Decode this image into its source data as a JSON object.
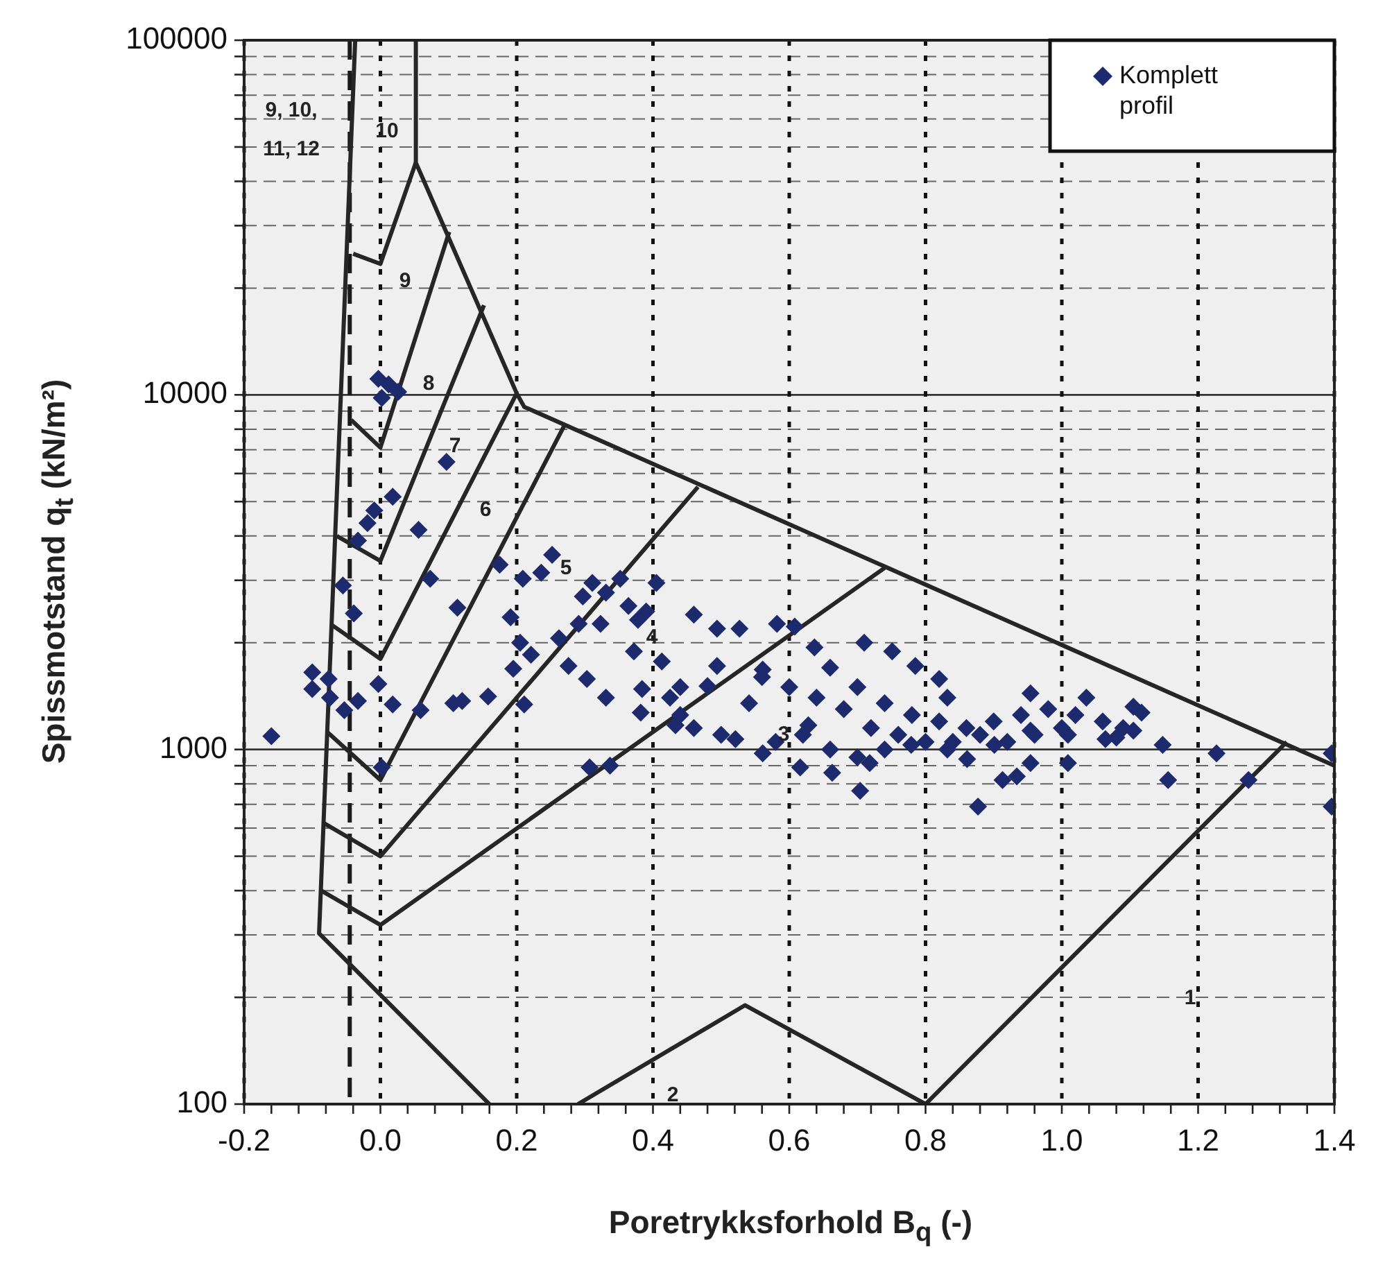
{
  "chart_data": {
    "type": "scatter",
    "xlabel": "Poretrykksforhold B$_{q}$ (-)",
    "ylabel": "Spissmotstand q$_{t}$ (kN/m²)",
    "log": "y",
    "grid": true,
    "legend": "top right",
    "xlim": [
      -0.2,
      1.4
    ],
    "xticks": [
      {
        "value": -0.2,
        "label": "-0.2"
      },
      {
        "value": -0.16,
        "label": null
      },
      {
        "value": -0.12,
        "label": null
      },
      {
        "value": -0.08,
        "label": null
      },
      {
        "value": -0.04,
        "label": null
      },
      {
        "value": 0,
        "label": "0.0"
      },
      {
        "value": 0.04,
        "label": null
      },
      {
        "value": 0.08,
        "label": null
      },
      {
        "value": 0.12,
        "label": null
      },
      {
        "value": 0.16,
        "label": null
      },
      {
        "value": 0.2,
        "label": "0.2"
      },
      {
        "value": 0.24,
        "label": null
      },
      {
        "value": 0.28,
        "label": null
      },
      {
        "value": 0.32,
        "label": null
      },
      {
        "value": 0.36,
        "label": null
      },
      {
        "value": 0.4,
        "label": "0.4"
      },
      {
        "value": 0.44,
        "label": null
      },
      {
        "value": 0.48,
        "label": null
      },
      {
        "value": 0.52,
        "label": null
      },
      {
        "value": 0.56,
        "label": null
      },
      {
        "value": 0.6,
        "label": "0.6"
      },
      {
        "value": 0.64,
        "label": null
      },
      {
        "value": 0.68,
        "label": null
      },
      {
        "value": 0.72,
        "label": null
      },
      {
        "value": 0.76,
        "label": null
      },
      {
        "value": 0.8,
        "label": "0.8"
      },
      {
        "value": 0.84,
        "label": null
      },
      {
        "value": 0.88,
        "label": null
      },
      {
        "value": 0.92,
        "label": null
      },
      {
        "value": 0.96,
        "label": null
      },
      {
        "value": 1,
        "label": "1.0"
      },
      {
        "value": 1.04,
        "label": null
      },
      {
        "value": 1.08,
        "label": null
      },
      {
        "value": 1.12,
        "label": null
      },
      {
        "value": 1.16,
        "label": null
      },
      {
        "value": 1.2,
        "label": "1.2"
      },
      {
        "value": 1.24,
        "label": null
      },
      {
        "value": 1.28,
        "label": null
      },
      {
        "value": 1.32,
        "label": null
      },
      {
        "value": 1.36,
        "label": null
      },
      {
        "value": 1.4,
        "label": "1.4"
      }
    ],
    "ylim": [
      100,
      100000
    ],
    "yticks": [
      100,
      {
        "value": 200,
        "label": null
      },
      {
        "value": 300,
        "label": null
      },
      {
        "value": 400,
        "label": null
      },
      {
        "value": 500,
        "label": null
      },
      {
        "value": 600,
        "label": null
      },
      {
        "value": 700,
        "label": null
      },
      {
        "value": 800,
        "label": null
      },
      {
        "value": 900,
        "label": null
      },
      1000,
      {
        "value": 2000,
        "label": null
      },
      {
        "value": 3000,
        "label": null
      },
      {
        "value": 4000,
        "label": null
      },
      {
        "value": 5000,
        "label": null
      },
      {
        "value": 6000,
        "label": null
      },
      {
        "value": 7000,
        "label": null
      },
      {
        "value": 8000,
        "label": null
      },
      {
        "value": 9000,
        "label": null
      },
      10000,
      {
        "value": 20000,
        "label": null
      },
      {
        "value": 30000,
        "label": null
      },
      {
        "value": 40000,
        "label": null
      },
      {
        "value": 50000,
        "label": null
      },
      {
        "value": 60000,
        "label": null
      },
      {
        "value": 70000,
        "label": null
      },
      {
        "value": 80000,
        "label": null
      },
      {
        "value": 90000,
        "label": null
      },
      100000
    ],
    "ref_lines": [
      {
        "axis": "x",
        "value": -0.045,
        "line_style": "dashed",
        "color": "#1a1a1a"
      }
    ],
    "annotations": [
      "9, 10, 11, 12",
      "10",
      "9",
      "8",
      "7",
      "6",
      "5",
      "4",
      "3",
      "2",
      "1"
    ],
    "series": [
      {
        "name": "Komplett profil",
        "type": "scatter",
        "marker": "diamond",
        "color": "#1e2a6e",
        "x": [
          -0.16,
          -0.1,
          -0.076,
          -0.1,
          -0.074,
          -0.053,
          -0.033,
          -0.003,
          0.018,
          0.059,
          0.107,
          0.12,
          0.158,
          0.211,
          0.002,
          0.307,
          0.337,
          -0.055,
          -0.039,
          -0.033,
          0.073,
          0.113,
          0.191,
          0.175,
          0.056,
          0.205,
          0.195,
          0.221,
          0.252,
          0.209,
          0.236,
          0.262,
          0.276,
          0.303,
          0.331,
          0.297,
          0.331,
          0.364,
          0.378,
          0.323,
          0.291,
          0.372,
          0.384,
          0.382,
          0.405,
          0.425,
          0.433,
          0.413,
          0.352,
          0.311,
          0.39,
          0.44,
          0.46,
          0.494,
          0.527,
          0.494,
          0.48,
          0.541,
          0.582,
          0.608,
          0.561,
          0.637,
          0.71,
          0.751,
          0.785,
          0.82,
          0.832,
          0.954,
          1.036,
          1.105,
          1.117,
          0.628,
          0.521,
          0.561,
          0.616,
          0.663,
          0.704,
          0.718,
          0.779,
          0.832,
          0.861,
          0.901,
          0.954,
          1.009,
          1.064,
          1.105,
          1.148,
          1.227,
          1.156,
          1.274,
          1.396,
          0.913,
          0.934,
          1.009,
          0.954,
          0.877,
          1.396,
          0.012,
          -0.003,
          0.026,
          0.002,
          0.097,
          0.018,
          -0.009,
          -0.019,
          0.78,
          0.82,
          0.86,
          0.9,
          0.94,
          0.98,
          1.02,
          1.06,
          1.09,
          1.0,
          0.96,
          0.88,
          0.84,
          0.76,
          0.72,
          0.68,
          0.64,
          0.6,
          0.56,
          0.66,
          0.7,
          0.74,
          0.62,
          0.66,
          0.58,
          0.5,
          0.46,
          0.44,
          0.7,
          0.74,
          0.8,
          0.92,
          1.08
        ],
        "values": [
          1090,
          1650,
          1580,
          1480,
          1400,
          1290,
          1370,
          1530,
          1340,
          1290,
          1350,
          1370,
          1410,
          1340,
          890,
          890,
          900,
          2900,
          2420,
          3880,
          3030,
          2510,
          2360,
          3320,
          4160,
          2000,
          1690,
          1850,
          3540,
          3030,
          3150,
          2060,
          1720,
          1580,
          1400,
          2700,
          2770,
          2540,
          2320,
          2260,
          2260,
          1890,
          1480,
          1270,
          2950,
          1400,
          1170,
          1770,
          3030,
          2950,
          2450,
          1500,
          2400,
          2190,
          2190,
          1720,
          1510,
          1350,
          2260,
          2220,
          1680,
          1940,
          2000,
          1890,
          1720,
          1580,
          1400,
          1440,
          1400,
          1320,
          1270,
          1170,
          1070,
          975,
          890,
          860,
          765,
          916,
          1030,
          1000,
          940,
          1030,
          1130,
          1100,
          1070,
          1130,
          1030,
          975,
          820,
          820,
          975,
          820,
          840,
          916,
          916,
          690,
          690,
          10700,
          11100,
          10200,
          9800,
          6470,
          5160,
          4720,
          4350,
          1250,
          1200,
          1150,
          1200,
          1250,
          1300,
          1250,
          1200,
          1150,
          1150,
          1100,
          1100,
          1050,
          1100,
          1150,
          1300,
          1400,
          1500,
          1600,
          1700,
          1500,
          1350,
          1100,
          1000,
          1050,
          1100,
          1150,
          1250,
          950,
          1000,
          1050,
          1050,
          1080
        ]
      },
      {
        "type": "line",
        "color": "#262626",
        "x": [
          -0.037,
          -0.09,
          0.16
        ],
        "values": [
          100000,
          303,
          100
        ]
      },
      {
        "type": "line",
        "color": "#262626",
        "x": [
          0.052,
          0.052,
          0.2,
          0.211,
          1.4
        ],
        "values": [
          100000,
          45200,
          10100,
          9250,
          900
        ]
      },
      {
        "type": "line",
        "color": "#262626",
        "x": [
          -0.04,
          0.0,
          0.052
        ],
        "values": [
          25000,
          23400,
          45200
        ]
      },
      {
        "type": "line",
        "color": "#262626",
        "x": [
          -0.043,
          0.0,
          0.101
        ],
        "values": [
          8500,
          7100,
          28800
        ]
      },
      {
        "type": "line",
        "color": "#262626",
        "x": [
          -0.064,
          0.0,
          0.152
        ],
        "values": [
          4000,
          3400,
          17900
        ]
      },
      {
        "type": "line",
        "color": "#262626",
        "x": [
          -0.072,
          0.0,
          0.2
        ],
        "values": [
          2250,
          1800,
          10100
        ]
      },
      {
        "type": "line",
        "color": "#262626",
        "x": [
          -0.078,
          0.0,
          0.27
        ],
        "values": [
          1120,
          820,
          8200
        ]
      },
      {
        "type": "line",
        "color": "#262626",
        "x": [
          -0.083,
          0.0,
          0.466
        ],
        "values": [
          620,
          500,
          5500
        ]
      },
      {
        "type": "line",
        "color": "#262626",
        "x": [
          -0.087,
          0.0,
          0.74
        ],
        "values": [
          400,
          320,
          3250
        ]
      },
      {
        "type": "line",
        "color": "#262626",
        "x": [
          0.29,
          0.535,
          0.8,
          1.33
        ],
        "values": [
          100,
          190,
          100,
          1050
        ]
      }
    ]
  }
}
